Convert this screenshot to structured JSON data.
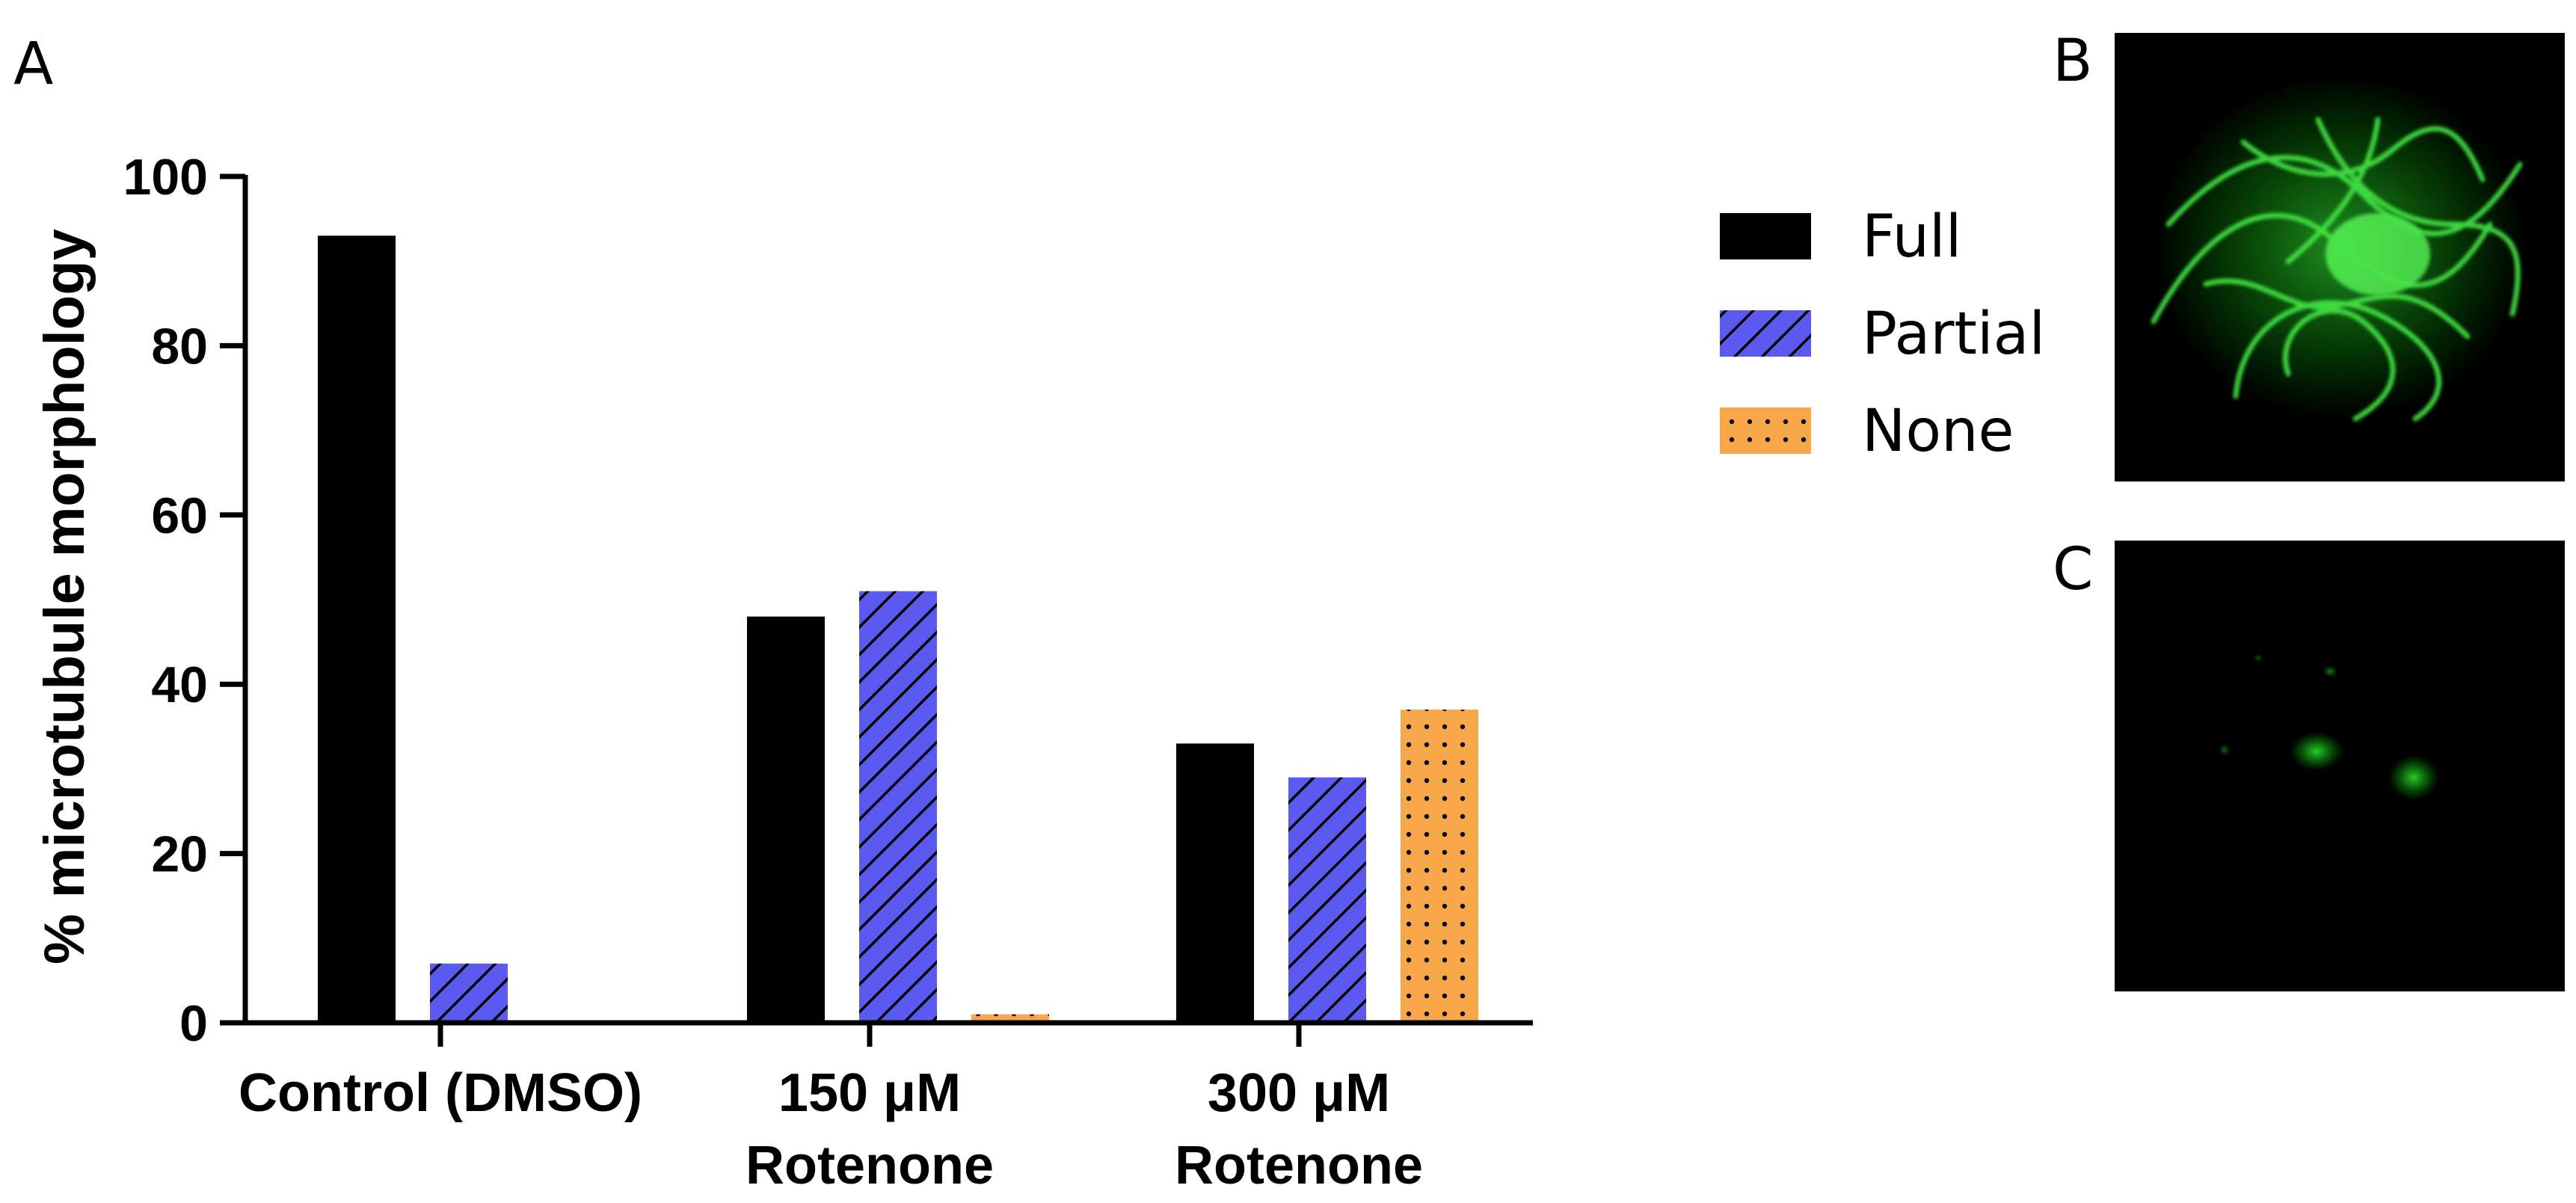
{
  "panels": {
    "a": "A",
    "b": "B",
    "c": "C"
  },
  "chart_data": {
    "type": "bar",
    "title": "",
    "xlabel": "",
    "ylabel": "% microtubule morphology",
    "ylim": [
      0,
      100
    ],
    "yticks": [
      0,
      20,
      40,
      60,
      80,
      100
    ],
    "categories": [
      {
        "lines": [
          "Control (DMSO)"
        ]
      },
      {
        "lines": [
          "150 μM",
          "Rotenone"
        ]
      },
      {
        "lines": [
          "300 μM",
          "Rotenone"
        ]
      }
    ],
    "series": [
      {
        "name": "Full",
        "values": [
          93,
          48,
          33
        ],
        "color": "#000000",
        "pattern": "solid"
      },
      {
        "name": "Partial",
        "values": [
          7,
          51,
          29
        ],
        "color": "#5a5af0",
        "pattern": "hatch"
      },
      {
        "name": "None",
        "values": [
          0,
          1,
          37
        ],
        "color": "#f8a64a",
        "pattern": "dots"
      }
    ],
    "legend_position": "right",
    "grid": false
  },
  "images": [
    {
      "panel": "B",
      "description_icon": "microscopy-image-icon"
    },
    {
      "panel": "C",
      "description_icon": "microscopy-image-icon"
    }
  ]
}
